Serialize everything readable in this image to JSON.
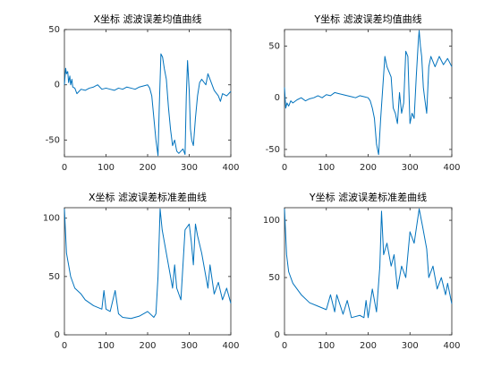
{
  "chart_data": [
    {
      "type": "line",
      "title": "X坐标 滤波误差均值曲线",
      "color": "#0072bd",
      "x": [
        0,
        3,
        5,
        8,
        10,
        13,
        15,
        18,
        20,
        25,
        30,
        40,
        50,
        60,
        70,
        80,
        90,
        100,
        110,
        120,
        130,
        140,
        150,
        160,
        170,
        180,
        190,
        200,
        205,
        210,
        215,
        220,
        225,
        228,
        232,
        236,
        240,
        245,
        250,
        255,
        260,
        265,
        270,
        275,
        280,
        285,
        290,
        293,
        296,
        300,
        303,
        306,
        310,
        315,
        320,
        325,
        330,
        340,
        345,
        350,
        360,
        370,
        375,
        380,
        390,
        400
      ],
      "values": [
        0,
        15,
        10,
        12,
        2,
        8,
        0,
        5,
        -2,
        -3,
        -8,
        -4,
        -5,
        -3,
        -2,
        0,
        -4,
        -3,
        -4,
        -5,
        -3,
        -4,
        -2,
        -3,
        -4,
        -2,
        -1,
        0,
        -3,
        -10,
        -30,
        -50,
        -64,
        -20,
        28,
        25,
        15,
        5,
        -20,
        -40,
        -55,
        -50,
        -60,
        -62,
        -60,
        -58,
        -63,
        -10,
        22,
        -5,
        -40,
        -50,
        -55,
        -30,
        -10,
        2,
        5,
        0,
        10,
        5,
        -5,
        -10,
        -15,
        -8,
        -10,
        -6
      ],
      "xlim": [
        0,
        400
      ],
      "ylim": [
        -65,
        50
      ],
      "xticks": [
        0,
        100,
        200,
        300,
        400
      ],
      "yticks": [
        -50,
        0,
        50
      ]
    },
    {
      "type": "line",
      "title": "Y坐标 滤波误差均值曲线",
      "color": "#0072bd",
      "x": [
        0,
        3,
        6,
        10,
        15,
        20,
        30,
        40,
        50,
        60,
        70,
        80,
        90,
        100,
        110,
        120,
        130,
        140,
        150,
        160,
        170,
        180,
        190,
        200,
        205,
        210,
        215,
        220,
        225,
        230,
        235,
        240,
        245,
        250,
        255,
        260,
        265,
        270,
        275,
        280,
        285,
        290,
        295,
        300,
        305,
        310,
        315,
        320,
        322,
        325,
        328,
        332,
        335,
        340,
        345,
        350,
        355,
        360,
        370,
        380,
        390,
        400
      ],
      "values": [
        10,
        -10,
        -5,
        -8,
        -3,
        -5,
        -2,
        0,
        -3,
        -1,
        0,
        2,
        0,
        3,
        2,
        5,
        4,
        3,
        2,
        1,
        0,
        2,
        1,
        0,
        -3,
        -10,
        -20,
        -45,
        -55,
        -20,
        10,
        40,
        30,
        25,
        20,
        -10,
        -15,
        -25,
        5,
        -15,
        -5,
        45,
        40,
        -25,
        -15,
        -20,
        20,
        55,
        65,
        50,
        40,
        10,
        0,
        -15,
        30,
        40,
        35,
        30,
        40,
        32,
        38,
        30
      ],
      "xlim": [
        0,
        400
      ],
      "ylim": [
        -57,
        66
      ],
      "xticks": [
        0,
        100,
        200,
        300,
        400
      ],
      "yticks": [
        -50,
        0,
        50
      ]
    },
    {
      "type": "line",
      "title": "X坐标 滤波误差标准差曲线",
      "color": "#0072bd",
      "x": [
        0,
        5,
        10,
        15,
        25,
        40,
        50,
        70,
        90,
        95,
        100,
        110,
        122,
        130,
        140,
        160,
        180,
        200,
        215,
        220,
        225,
        230,
        235,
        240,
        250,
        260,
        265,
        270,
        280,
        285,
        290,
        300,
        305,
        310,
        315,
        320,
        330,
        340,
        345,
        350,
        360,
        370,
        380,
        390,
        400
      ],
      "values": [
        108,
        70,
        60,
        50,
        40,
        35,
        30,
        25,
        22,
        38,
        22,
        20,
        38,
        18,
        15,
        14,
        16,
        20,
        15,
        18,
        50,
        108,
        90,
        80,
        60,
        40,
        60,
        40,
        30,
        60,
        90,
        95,
        80,
        60,
        95,
        85,
        70,
        50,
        40,
        60,
        35,
        45,
        30,
        40,
        27
      ],
      "xlim": [
        0,
        400
      ],
      "ylim": [
        0,
        109
      ],
      "xticks": [
        0,
        100,
        200,
        300,
        400
      ],
      "yticks": [
        0,
        50,
        100
      ]
    },
    {
      "type": "line",
      "title": "Y坐标 滤波误差标准差曲线",
      "color": "#0072bd",
      "x": [
        0,
        5,
        10,
        20,
        40,
        60,
        80,
        100,
        110,
        120,
        125,
        140,
        150,
        160,
        180,
        190,
        195,
        200,
        210,
        220,
        228,
        232,
        237,
        245,
        255,
        262,
        270,
        280,
        290,
        300,
        310,
        322,
        330,
        340,
        345,
        355,
        365,
        375,
        385,
        390,
        400
      ],
      "values": [
        110,
        70,
        55,
        45,
        35,
        28,
        25,
        22,
        35,
        20,
        35,
        18,
        30,
        15,
        17,
        15,
        30,
        15,
        40,
        20,
        60,
        108,
        70,
        80,
        60,
        70,
        40,
        60,
        50,
        90,
        80,
        110,
        95,
        75,
        50,
        60,
        40,
        50,
        35,
        45,
        27
      ],
      "xlim": [
        0,
        400
      ],
      "ylim": [
        0,
        111
      ],
      "xticks": [
        0,
        100,
        200,
        300,
        400
      ],
      "yticks": [
        0,
        50,
        100
      ]
    }
  ]
}
